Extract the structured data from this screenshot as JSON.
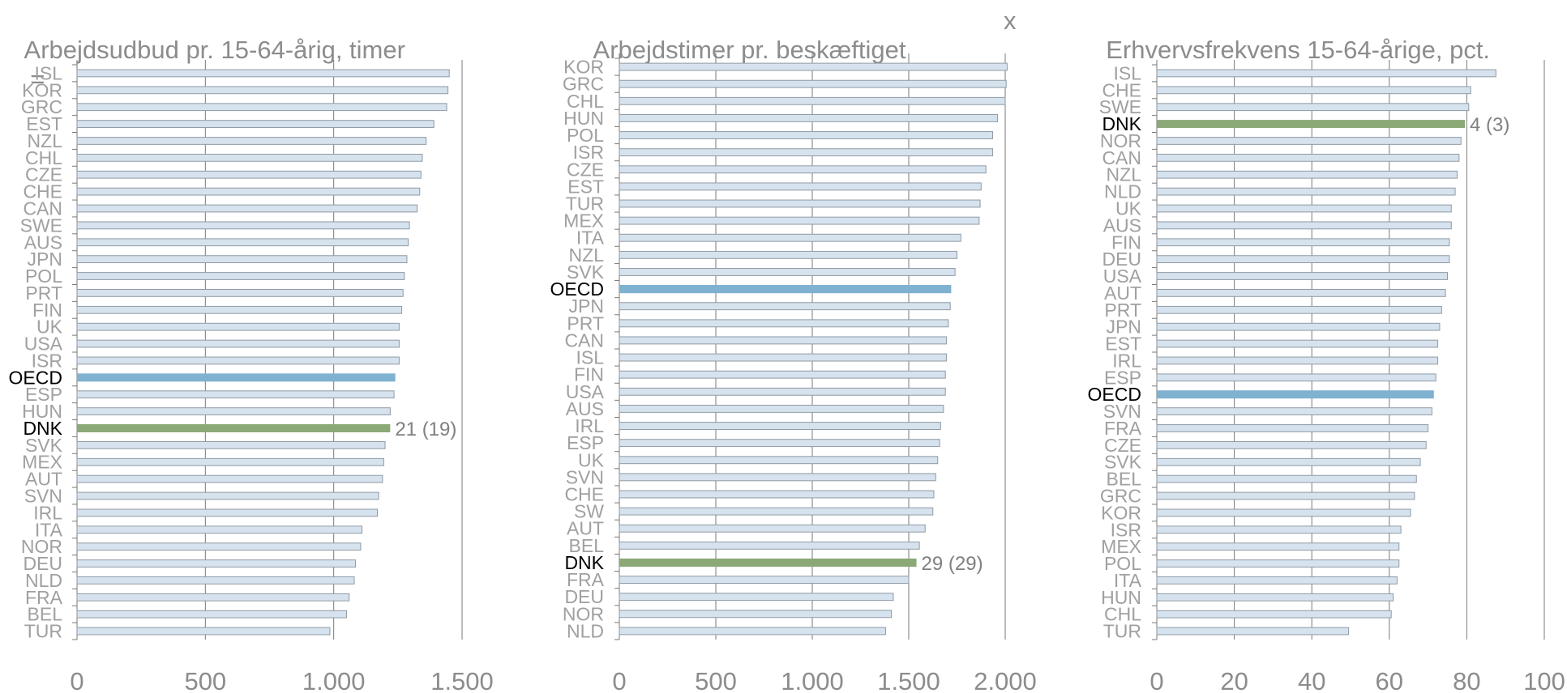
{
  "colors": {
    "bar_default": "#d6e3ee",
    "bar_border": "#8f9aa4",
    "bar_oecd": "#7fb1d1",
    "bar_dnk": "#8aa976",
    "gridline": "#7a7a7a",
    "text_grey": "#8c8c8c",
    "text_highlight": "#000000"
  },
  "chart_data": [
    {
      "type": "bar",
      "orientation": "horizontal",
      "title": "Arbejdsudbud pr. 15-64-årig, timer",
      "title_marker": "=",
      "xlim": [
        0,
        1500
      ],
      "xticks": [
        0,
        500,
        1000,
        1500
      ],
      "xtick_labels": [
        "0",
        "500",
        "1.000",
        "1.500"
      ],
      "grid": true,
      "categories": [
        "ISL",
        "KOR",
        "GRC",
        "EST",
        "NZL",
        "CHL",
        "CZE",
        "CHE",
        "CAN",
        "SWE",
        "AUS",
        "JPN",
        "POL",
        "PRT",
        "FIN",
        "UK",
        "USA",
        "ISR",
        "OECD",
        "ESP",
        "HUN",
        "DNK",
        "SVK",
        "MEX",
        "AUT",
        "SVN",
        "IRL",
        "ITA",
        "NOR",
        "DEU",
        "NLD",
        "FRA",
        "BEL",
        "TUR"
      ],
      "values": [
        1450,
        1445,
        1440,
        1390,
        1360,
        1345,
        1340,
        1335,
        1325,
        1295,
        1290,
        1285,
        1275,
        1270,
        1265,
        1255,
        1255,
        1255,
        1240,
        1235,
        1220,
        1220,
        1200,
        1195,
        1190,
        1175,
        1170,
        1110,
        1105,
        1085,
        1080,
        1060,
        1050,
        985
      ],
      "highlight": {
        "OECD": "oecd",
        "DNK": "dnk"
      },
      "annotation": {
        "category": "DNK",
        "text": "21 (19)"
      }
    },
    {
      "type": "bar",
      "orientation": "horizontal",
      "title": "Arbejdstimer pr. beskæftiget",
      "title_marker": "x",
      "xlim": [
        0,
        2000
      ],
      "xticks": [
        0,
        500,
        1000,
        1500,
        2000
      ],
      "xtick_labels": [
        "0",
        "500",
        "1.000",
        "1.500",
        "2.000"
      ],
      "grid": true,
      "categories": [
        "KOR",
        "GRC",
        "CHL",
        "HUN",
        "POL",
        "ISR",
        "CZE",
        "EST",
        "TUR",
        "MEX",
        "ITA",
        "NZL",
        "SVK",
        "OECD",
        "JPN",
        "PRT",
        "CAN",
        "ISL",
        "FIN",
        "USA",
        "AUS",
        "IRL",
        "ESP",
        "UK",
        "SVN",
        "CHE",
        "SW",
        "AUT",
        "BEL",
        "DNK",
        "FRA",
        "DEU",
        "NOR",
        "NLD"
      ],
      "values": [
        2010,
        2005,
        2000,
        1960,
        1935,
        1935,
        1900,
        1875,
        1870,
        1865,
        1770,
        1750,
        1740,
        1720,
        1715,
        1705,
        1695,
        1695,
        1690,
        1690,
        1680,
        1665,
        1660,
        1650,
        1640,
        1630,
        1625,
        1585,
        1555,
        1540,
        1500,
        1420,
        1410,
        1380
      ],
      "highlight": {
        "OECD": "oecd",
        "DNK": "dnk"
      },
      "annotation": {
        "category": "DNK",
        "text": "29 (29)"
      }
    },
    {
      "type": "bar",
      "orientation": "horizontal",
      "title": "Erhvervsfrekvens 15-64-årige, pct.",
      "title_marker": "",
      "xlim": [
        0,
        100
      ],
      "xticks": [
        0,
        20,
        40,
        60,
        80,
        100
      ],
      "xtick_labels": [
        "0",
        "20",
        "40",
        "60",
        "80",
        "100"
      ],
      "grid": true,
      "categories": [
        "ISL",
        "CHE",
        "SWE",
        "DNK",
        "NOR",
        "CAN",
        "NZL",
        "NLD",
        "UK",
        "AUS",
        "FIN",
        "DEU",
        "USA",
        "AUT",
        "PRT",
        "JPN",
        "EST",
        "IRL",
        "ESP",
        "OECD",
        "SVN",
        "FRA",
        "CZE",
        "SVK",
        "BEL",
        "GRC",
        "KOR",
        "ISR",
        "MEX",
        "POL",
        "ITA",
        "HUN",
        "CHL",
        "TUR"
      ],
      "values": [
        87.5,
        81,
        80.5,
        79.5,
        78.5,
        78,
        77.5,
        77,
        76,
        76,
        75.5,
        75.5,
        75,
        74.5,
        73.5,
        73,
        72.5,
        72.5,
        72,
        71.5,
        71,
        70,
        69.5,
        68,
        67,
        66.5,
        65.5,
        63,
        62.5,
        62.5,
        62,
        61,
        60.5,
        49.5
      ],
      "highlight": {
        "OECD": "oecd",
        "DNK": "dnk"
      },
      "annotation": {
        "category": "DNK",
        "text": "4 (3)"
      }
    }
  ]
}
